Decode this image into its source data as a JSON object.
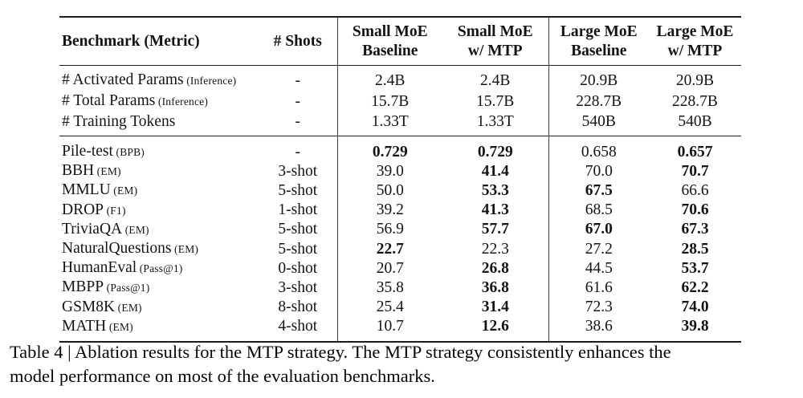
{
  "table": {
    "columns": [
      {
        "id": "benchmark",
        "lines": [
          "Benchmark (Metric)"
        ]
      },
      {
        "id": "shots",
        "lines": [
          "# Shots"
        ]
      },
      {
        "id": "small-baseline",
        "lines": [
          "Small MoE",
          "Baseline"
        ]
      },
      {
        "id": "small-mtp",
        "lines": [
          "Small MoE",
          "w/ MTP"
        ]
      },
      {
        "id": "large-baseline",
        "lines": [
          "Large MoE",
          "Baseline"
        ]
      },
      {
        "id": "large-mtp",
        "lines": [
          "Large MoE",
          "w/ MTP"
        ]
      }
    ],
    "param_rows": [
      {
        "label": "# Activated Params",
        "metric": "(Inference)",
        "shots": "-",
        "values": [
          "2.4B",
          "2.4B",
          "20.9B",
          "20.9B"
        ],
        "bold": [
          false,
          false,
          false,
          false
        ]
      },
      {
        "label": "# Total Params",
        "metric": "(Inference)",
        "shots": "-",
        "values": [
          "15.7B",
          "15.7B",
          "228.7B",
          "228.7B"
        ],
        "bold": [
          false,
          false,
          false,
          false
        ]
      },
      {
        "label": "# Training Tokens",
        "metric": "",
        "shots": "-",
        "values": [
          "1.33T",
          "1.33T",
          "540B",
          "540B"
        ],
        "bold": [
          false,
          false,
          false,
          false
        ]
      }
    ],
    "benchmark_rows": [
      {
        "label": "Pile-test",
        "metric": "(BPB)",
        "shots": "-",
        "values": [
          "0.729",
          "0.729",
          "0.658",
          "0.657"
        ],
        "bold": [
          true,
          true,
          false,
          true
        ]
      },
      {
        "label": "BBH",
        "metric": "(EM)",
        "shots": "3-shot",
        "values": [
          "39.0",
          "41.4",
          "70.0",
          "70.7"
        ],
        "bold": [
          false,
          true,
          false,
          true
        ]
      },
      {
        "label": "MMLU",
        "metric": "(EM)",
        "shots": "5-shot",
        "values": [
          "50.0",
          "53.3",
          "67.5",
          "66.6"
        ],
        "bold": [
          false,
          true,
          true,
          false
        ]
      },
      {
        "label": "DROP",
        "metric": "(F1)",
        "shots": "1-shot",
        "values": [
          "39.2",
          "41.3",
          "68.5",
          "70.6"
        ],
        "bold": [
          false,
          true,
          false,
          true
        ]
      },
      {
        "label": "TriviaQA",
        "metric": "(EM)",
        "shots": "5-shot",
        "values": [
          "56.9",
          "57.7",
          "67.0",
          "67.3"
        ],
        "bold": [
          false,
          true,
          true,
          true
        ]
      },
      {
        "label": "NaturalQuestions",
        "metric": "(EM)",
        "shots": "5-shot",
        "values": [
          "22.7",
          "22.3",
          "27.2",
          "28.5"
        ],
        "bold": [
          true,
          false,
          false,
          true
        ]
      },
      {
        "label": "HumanEval",
        "metric": "(Pass@1)",
        "shots": "0-shot",
        "values": [
          "20.7",
          "26.8",
          "44.5",
          "53.7"
        ],
        "bold": [
          false,
          true,
          false,
          true
        ]
      },
      {
        "label": "MBPP",
        "metric": "(Pass@1)",
        "shots": "3-shot",
        "values": [
          "35.8",
          "36.8",
          "61.6",
          "62.2"
        ],
        "bold": [
          false,
          true,
          false,
          true
        ]
      },
      {
        "label": "GSM8K",
        "metric": "(EM)",
        "shots": "8-shot",
        "values": [
          "25.4",
          "31.4",
          "72.3",
          "74.0"
        ],
        "bold": [
          false,
          true,
          false,
          true
        ]
      },
      {
        "label": "MATH",
        "metric": "(EM)",
        "shots": "4-shot",
        "values": [
          "10.7",
          "12.6",
          "38.6",
          "39.8"
        ],
        "bold": [
          false,
          true,
          false,
          true
        ]
      }
    ]
  },
  "caption": {
    "text": "Table 4 | Ablation results for the MTP strategy. The MTP strategy consistently enhances the model performance on most of the evaluation benchmarks.",
    "lines": [
      "Table 4 | Ablation results for the MTP strategy.  The MTP strategy consistently enhances the",
      "model performance on most of the evaluation benchmarks."
    ]
  }
}
